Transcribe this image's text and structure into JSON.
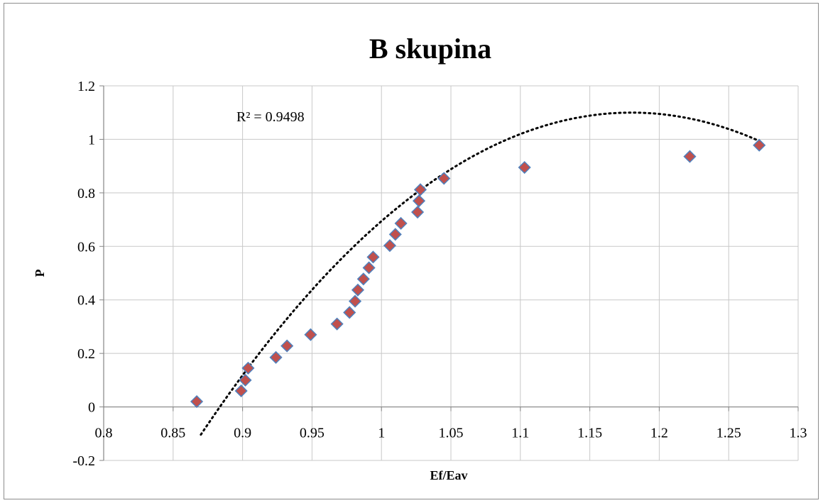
{
  "chart_data": {
    "type": "scatter",
    "title": "B skupina",
    "xlabel": "Ef/Eav",
    "ylabel": "P",
    "xlim": [
      0.8,
      1.3
    ],
    "ylim": [
      -0.2,
      1.2
    ],
    "x_ticks": [
      "0.8",
      "0.85",
      "0.9",
      "0.95",
      "1",
      "1.05",
      "1.1",
      "1.15",
      "1.2",
      "1.25",
      "1.3"
    ],
    "y_ticks": [
      "-0.2",
      "0",
      "0.2",
      "0.4",
      "0.6",
      "0.8",
      "1",
      "1.2"
    ],
    "x_tick_values": [
      0.8,
      0.85,
      0.9,
      0.95,
      1.0,
      1.05,
      1.1,
      1.15,
      1.2,
      1.25,
      1.3
    ],
    "y_tick_values": [
      -0.2,
      0,
      0.2,
      0.4,
      0.6,
      0.8,
      1.0,
      1.2
    ],
    "grid": true,
    "legend": "none",
    "marker": {
      "shape": "diamond",
      "fill": "#c0504d",
      "stroke": "#4f81bd"
    },
    "series": [
      {
        "points": [
          [
            0.867,
            0.02
          ],
          [
            0.899,
            0.06
          ],
          [
            0.902,
            0.1
          ],
          [
            0.904,
            0.145
          ],
          [
            0.924,
            0.185
          ],
          [
            0.932,
            0.228
          ],
          [
            0.949,
            0.27
          ],
          [
            0.968,
            0.31
          ],
          [
            0.977,
            0.353
          ],
          [
            0.981,
            0.395
          ],
          [
            0.983,
            0.437
          ],
          [
            0.987,
            0.478
          ],
          [
            0.991,
            0.52
          ],
          [
            0.994,
            0.56
          ],
          [
            1.006,
            0.603
          ],
          [
            1.01,
            0.645
          ],
          [
            1.014,
            0.686
          ],
          [
            1.026,
            0.728
          ],
          [
            1.027,
            0.77
          ],
          [
            1.028,
            0.812
          ],
          [
            1.045,
            0.854
          ],
          [
            1.103,
            0.895
          ],
          [
            1.222,
            0.936
          ],
          [
            1.272,
            0.978
          ]
        ]
      }
    ],
    "trendline": {
      "type": "polynomial",
      "order": 2,
      "style": "dotted",
      "color": "#000000",
      "x_range": [
        0.87,
        1.27
      ],
      "peak": [
        1.18,
        1.1
      ],
      "r_squared_label": "R² = 0.9498"
    }
  }
}
